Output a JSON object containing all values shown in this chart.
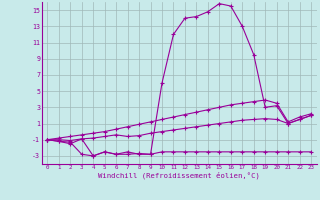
{
  "x": [
    0,
    1,
    2,
    3,
    4,
    5,
    6,
    7,
    8,
    9,
    10,
    11,
    12,
    13,
    14,
    15,
    16,
    17,
    18,
    19,
    20,
    21,
    22,
    23
  ],
  "line_peak": [
    -1,
    -1.2,
    -1.3,
    -2.8,
    -3.0,
    -2.5,
    -2.8,
    -2.8,
    -2.7,
    -2.8,
    6.0,
    12.0,
    14.0,
    14.2,
    14.8,
    15.8,
    15.5,
    13.0,
    9.5,
    3.0,
    3.2,
    1.0,
    1.5,
    2.0
  ],
  "line_diag": [
    -1.0,
    -0.8,
    -0.6,
    -0.4,
    -0.2,
    0.0,
    0.3,
    0.6,
    0.9,
    1.2,
    1.5,
    1.8,
    2.1,
    2.4,
    2.7,
    3.0,
    3.3,
    3.5,
    3.7,
    3.9,
    3.5,
    1.2,
    1.8,
    2.2
  ],
  "line_low1": [
    -1,
    -1.2,
    -1.5,
    -0.9,
    -3.0,
    -2.5,
    -2.8,
    -2.5,
    -2.8,
    -2.8,
    -2.5,
    -2.5,
    -2.5,
    -2.5,
    -2.5,
    -2.5,
    -2.5,
    -2.5,
    -2.5,
    -2.5,
    -2.5,
    -2.5,
    -2.5,
    -2.5
  ],
  "line_low2": [
    -1.0,
    -1.0,
    -1.1,
    -0.9,
    -0.8,
    -0.6,
    -0.4,
    -0.6,
    -0.5,
    -0.2,
    0.0,
    0.2,
    0.4,
    0.6,
    0.8,
    1.0,
    1.2,
    1.4,
    1.5,
    1.6,
    1.5,
    1.0,
    1.5,
    2.0
  ],
  "background_color": "#c8eaea",
  "grid_color": "#a0b8b8",
  "line_color": "#990099",
  "xlabel": "Windchill (Refroidissement éolien,°C)",
  "xlim": [
    -0.5,
    23.5
  ],
  "ylim": [
    -4,
    16
  ],
  "yticks": [
    -3,
    -1,
    1,
    3,
    5,
    7,
    9,
    11,
    13,
    15
  ],
  "xticks": [
    0,
    1,
    2,
    3,
    4,
    5,
    6,
    7,
    8,
    9,
    10,
    11,
    12,
    13,
    14,
    15,
    16,
    17,
    18,
    19,
    20,
    21,
    22,
    23
  ]
}
